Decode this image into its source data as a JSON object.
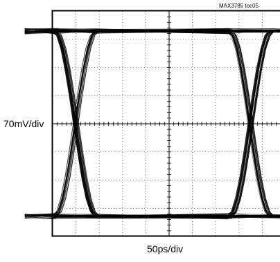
{
  "chart_data": {
    "type": "line",
    "title": "",
    "figure_id": "MAX3785 toc05",
    "xlabel": "50ps/div",
    "ylabel": "70mV/div",
    "x_unit": "ps",
    "y_unit": "mV",
    "x_divisions": 10,
    "y_divisions": 8,
    "x_per_div": 50,
    "y_per_div": 70,
    "xlim": [
      0,
      500
    ],
    "ylim": [
      -280,
      280
    ],
    "grid": true,
    "grid_style": "dotted with center crosshair axes",
    "legend": "none",
    "trace_color": "#000000",
    "series": [
      {
        "kind": "eye-diagram",
        "high_level_mV": 230,
        "low_level_mV": -230,
        "crossing_level_mV": 0,
        "crossing_times_ps": [
          50,
          425
        ],
        "transition_width_ps": 90
      }
    ]
  }
}
